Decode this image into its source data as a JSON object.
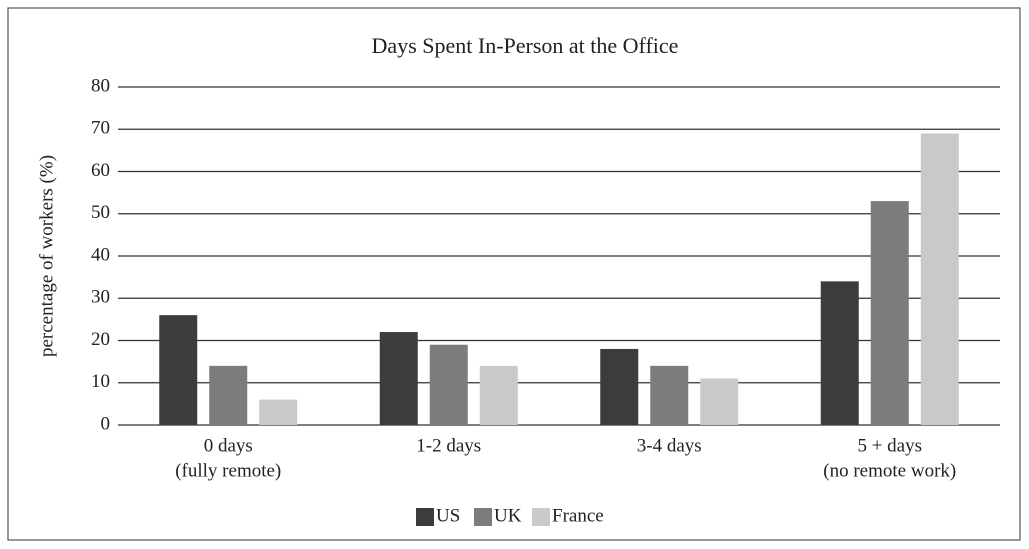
{
  "chart_data": {
    "type": "bar",
    "title": "Days Spent In-Person at the Office",
    "ylabel": "percentage of workers (%)",
    "categories": [
      [
        "0 days",
        "(fully remote)"
      ],
      [
        "1-2 days"
      ],
      [
        "3-4 days"
      ],
      [
        "5 + days",
        "(no remote work)"
      ]
    ],
    "series": [
      {
        "name": "US",
        "color": "#3c3c3c",
        "values": [
          26,
          22,
          18,
          34
        ]
      },
      {
        "name": "UK",
        "color": "#7c7c7c",
        "values": [
          14,
          19,
          14,
          53
        ]
      },
      {
        "name": "France",
        "color": "#c9c9c9",
        "values": [
          6,
          14,
          11,
          69
        ]
      }
    ],
    "ylim": [
      0,
      80
    ],
    "yticks": [
      0,
      10,
      20,
      30,
      40,
      50,
      60,
      70,
      80
    ],
    "grid": true,
    "legend": "bottom"
  }
}
